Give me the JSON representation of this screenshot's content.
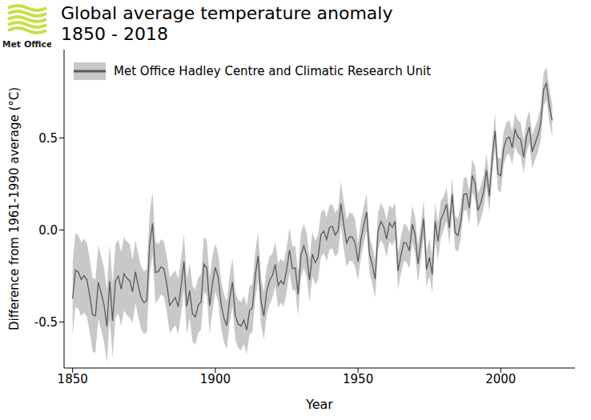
{
  "chart_data": {
    "type": "line",
    "logo_text": "Met Office",
    "title": "Global average temperature anomaly",
    "subtitle": "1850 - 2018",
    "x_label": "Year",
    "y_label": "Difference from 1961-1990 average (°C)",
    "legend": "top-left",
    "grid": false,
    "xlim": [
      1847,
      2026
    ],
    "xticks": [
      1850,
      1900,
      1950,
      2000
    ],
    "ylim": [
      -0.75,
      0.98
    ],
    "yticks": [
      -0.5,
      {
        "value": 0,
        "label": "0.0"
      },
      0.5
    ],
    "x": [
      1850,
      1851,
      1852,
      1853,
      1854,
      1855,
      1856,
      1857,
      1858,
      1859,
      1860,
      1861,
      1862,
      1863,
      1864,
      1865,
      1866,
      1867,
      1868,
      1869,
      1870,
      1871,
      1872,
      1873,
      1874,
      1875,
      1876,
      1877,
      1878,
      1879,
      1880,
      1881,
      1882,
      1883,
      1884,
      1885,
      1886,
      1887,
      1888,
      1889,
      1890,
      1891,
      1892,
      1893,
      1894,
      1895,
      1896,
      1897,
      1898,
      1899,
      1900,
      1901,
      1902,
      1903,
      1904,
      1905,
      1906,
      1907,
      1908,
      1909,
      1910,
      1911,
      1912,
      1913,
      1914,
      1915,
      1916,
      1917,
      1918,
      1919,
      1920,
      1921,
      1922,
      1923,
      1924,
      1925,
      1926,
      1927,
      1928,
      1929,
      1930,
      1931,
      1932,
      1933,
      1934,
      1935,
      1936,
      1937,
      1938,
      1939,
      1940,
      1941,
      1942,
      1943,
      1944,
      1945,
      1946,
      1947,
      1948,
      1949,
      1950,
      1951,
      1952,
      1953,
      1954,
      1955,
      1956,
      1957,
      1958,
      1959,
      1960,
      1961,
      1962,
      1963,
      1964,
      1965,
      1966,
      1967,
      1968,
      1969,
      1970,
      1971,
      1972,
      1973,
      1974,
      1975,
      1976,
      1977,
      1978,
      1979,
      1980,
      1981,
      1982,
      1983,
      1984,
      1985,
      1986,
      1987,
      1988,
      1989,
      1990,
      1991,
      1992,
      1993,
      1994,
      1995,
      1996,
      1997,
      1998,
      1999,
      2000,
      2001,
      2002,
      2003,
      2004,
      2005,
      2006,
      2007,
      2008,
      2009,
      2010,
      2011,
      2012,
      2013,
      2014,
      2015,
      2016,
      2017,
      2018
    ],
    "series": [
      {
        "name": "Met Office Hadley Centre and Climatic Research Unit",
        "color": "#5a5a5a",
        "values": [
          -0.373,
          -0.218,
          -0.228,
          -0.269,
          -0.248,
          -0.272,
          -0.358,
          -0.461,
          -0.467,
          -0.284,
          -0.343,
          -0.407,
          -0.524,
          -0.278,
          -0.494,
          -0.279,
          -0.251,
          -0.321,
          -0.238,
          -0.262,
          -0.276,
          -0.335,
          -0.227,
          -0.304,
          -0.368,
          -0.395,
          -0.384,
          -0.075,
          0.035,
          -0.23,
          -0.227,
          -0.2,
          -0.213,
          -0.296,
          -0.409,
          -0.389,
          -0.367,
          -0.418,
          -0.307,
          -0.171,
          -0.416,
          -0.33,
          -0.455,
          -0.473,
          -0.41,
          -0.39,
          -0.186,
          -0.206,
          -0.412,
          -0.289,
          -0.203,
          -0.259,
          -0.402,
          -0.479,
          -0.52,
          -0.377,
          -0.283,
          -0.465,
          -0.511,
          -0.522,
          -0.49,
          -0.544,
          -0.437,
          -0.424,
          -0.244,
          -0.141,
          -0.383,
          -0.468,
          -0.333,
          -0.275,
          -0.247,
          -0.187,
          -0.302,
          -0.276,
          -0.294,
          -0.215,
          -0.108,
          -0.21,
          -0.206,
          -0.35,
          -0.137,
          -0.087,
          -0.137,
          -0.273,
          -0.131,
          -0.178,
          -0.147,
          -0.026,
          -0.006,
          -0.052,
          0.014,
          0.02,
          -0.027,
          -0.004,
          0.144,
          0.025,
          -0.071,
          -0.038,
          -0.039,
          -0.074,
          -0.173,
          -0.052,
          0.028,
          0.097,
          -0.129,
          -0.19,
          -0.267,
          -0.007,
          0.046,
          0.017,
          -0.049,
          0.038,
          0.014,
          0.048,
          -0.223,
          -0.14,
          -0.068,
          -0.074,
          -0.113,
          0.032,
          -0.027,
          -0.186,
          -0.065,
          0.062,
          -0.214,
          -0.149,
          -0.241,
          0.047,
          -0.062,
          0.057,
          0.092,
          0.14,
          0.011,
          0.194,
          -0.014,
          -0.03,
          0.045,
          0.192,
          0.198,
          0.118,
          0.296,
          0.254,
          0.105,
          0.148,
          0.208,
          0.325,
          0.183,
          0.39,
          0.539,
          0.306,
          0.294,
          0.441,
          0.496,
          0.505,
          0.447,
          0.545,
          0.506,
          0.491,
          0.395,
          0.506,
          0.56,
          0.425,
          0.47,
          0.514,
          0.579,
          0.763,
          0.797,
          0.677,
          0.595
        ],
        "error": [
          0.2,
          0.2,
          0.2,
          0.2,
          0.2,
          0.2,
          0.2,
          0.2,
          0.2,
          0.2,
          0.2,
          0.2,
          0.2,
          0.2,
          0.2,
          0.2,
          0.2,
          0.2,
          0.2,
          0.2,
          0.2,
          0.17,
          0.17,
          0.17,
          0.17,
          0.17,
          0.17,
          0.17,
          0.17,
          0.17,
          0.15,
          0.15,
          0.15,
          0.15,
          0.15,
          0.15,
          0.15,
          0.15,
          0.15,
          0.15,
          0.15,
          0.15,
          0.15,
          0.15,
          0.15,
          0.15,
          0.15,
          0.15,
          0.15,
          0.15,
          0.13,
          0.13,
          0.13,
          0.13,
          0.13,
          0.13,
          0.13,
          0.13,
          0.13,
          0.13,
          0.13,
          0.13,
          0.13,
          0.13,
          0.13,
          0.13,
          0.13,
          0.13,
          0.13,
          0.13,
          0.12,
          0.12,
          0.12,
          0.12,
          0.12,
          0.12,
          0.12,
          0.12,
          0.12,
          0.12,
          0.12,
          0.12,
          0.12,
          0.12,
          0.12,
          0.12,
          0.12,
          0.12,
          0.12,
          0.12,
          0.12,
          0.12,
          0.12,
          0.12,
          0.12,
          0.13,
          0.13,
          0.13,
          0.13,
          0.13,
          0.1,
          0.1,
          0.1,
          0.1,
          0.1,
          0.1,
          0.1,
          0.1,
          0.1,
          0.1,
          0.1,
          0.1,
          0.1,
          0.1,
          0.1,
          0.1,
          0.1,
          0.1,
          0.1,
          0.1,
          0.1,
          0.1,
          0.1,
          0.1,
          0.1,
          0.1,
          0.1,
          0.1,
          0.1,
          0.1,
          0.09,
          0.09,
          0.09,
          0.09,
          0.09,
          0.09,
          0.09,
          0.09,
          0.09,
          0.09,
          0.09,
          0.09,
          0.09,
          0.09,
          0.09,
          0.09,
          0.09,
          0.09,
          0.09,
          0.09,
          0.09,
          0.09,
          0.09,
          0.09,
          0.09,
          0.09,
          0.09,
          0.09,
          0.09,
          0.09,
          0.09,
          0.09,
          0.09,
          0.09,
          0.09,
          0.09,
          0.09,
          0.09,
          0.09
        ]
      }
    ]
  }
}
